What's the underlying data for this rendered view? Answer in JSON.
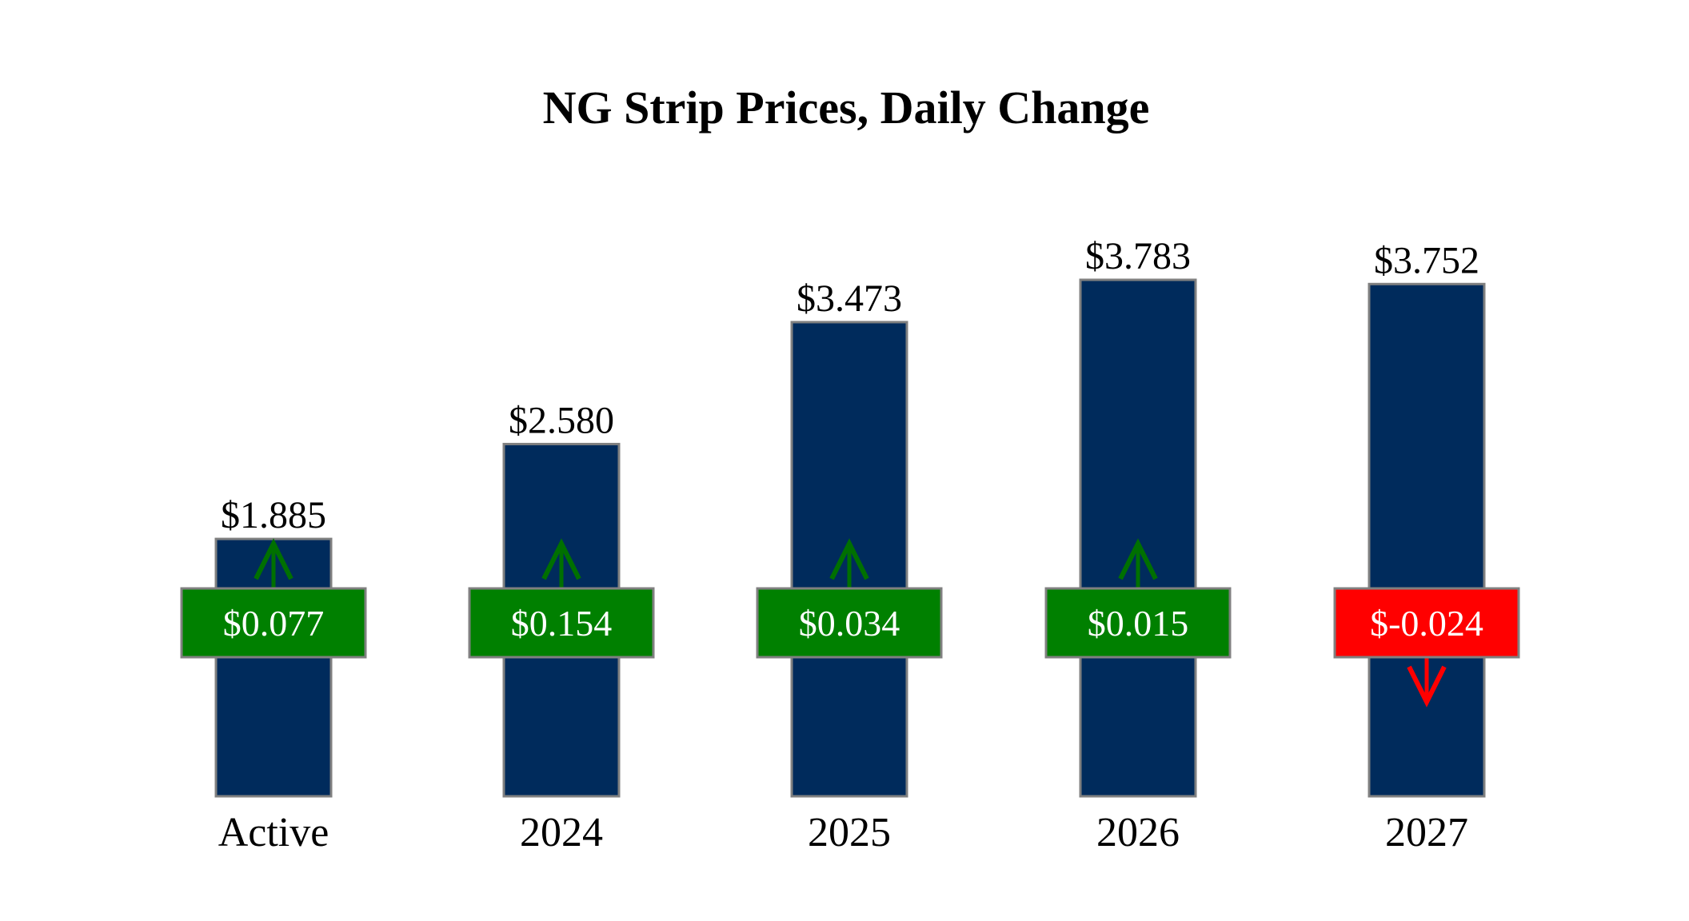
{
  "chart_data": {
    "type": "bar",
    "title": "NG Strip Prices, Daily Change",
    "xlabel": "",
    "ylabel": "",
    "categories": [
      "Active",
      "2024",
      "2025",
      "2026",
      "2027"
    ],
    "values": [
      1.885,
      2.58,
      3.473,
      3.783,
      3.752
    ],
    "value_labels": [
      "$1.885",
      "$2.580",
      "$3.473",
      "$3.783",
      "$3.752"
    ],
    "changes": [
      0.077,
      0.154,
      0.034,
      0.015,
      -0.024
    ],
    "change_labels": [
      "$0.077",
      "$0.154",
      "$0.034",
      "$0.015",
      "$-0.024"
    ],
    "ylim": [
      0,
      4.3
    ],
    "grid": false,
    "colors": {
      "bar": "#002b5c",
      "bar_border": "#808080",
      "up": "#008000",
      "down": "#ff0000",
      "up_arrow": "#007000",
      "down_arrow": "#ff0000"
    }
  }
}
